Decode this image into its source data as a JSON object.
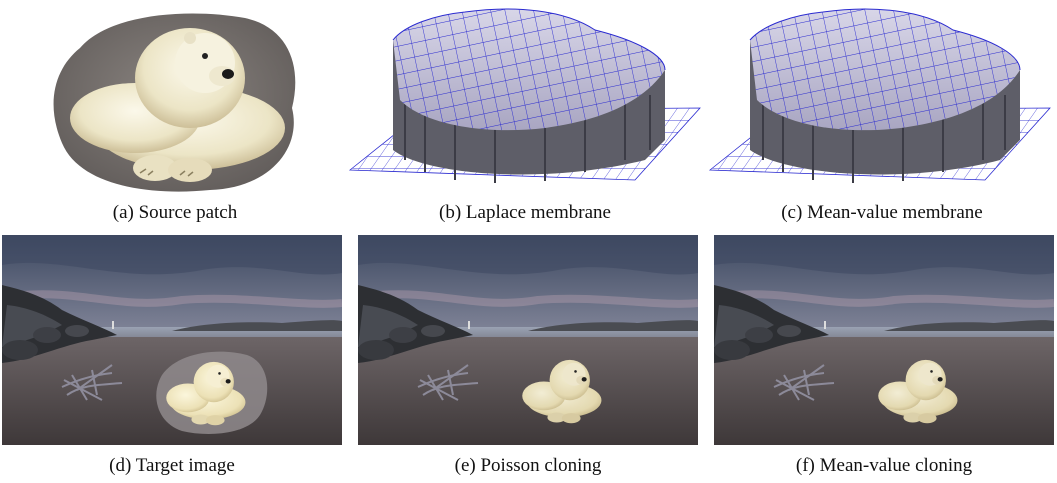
{
  "figure": {
    "captions": {
      "a": "(a) Source patch",
      "b": "(b) Laplace membrane",
      "c": "(c) Mean-value membrane",
      "d": "(d) Target image",
      "e": "(e) Poisson cloning",
      "f": "(f) Mean-value cloning"
    }
  },
  "colors": {
    "sky_top": "#3d4a63",
    "sky_horizon": "#a9b4c4",
    "sand": "#4b4446",
    "membrane_top": "#c9c6dc",
    "membrane_wall": "#5c5c66",
    "grid": "#2a2ad0",
    "bear": "#f1ecd3"
  }
}
